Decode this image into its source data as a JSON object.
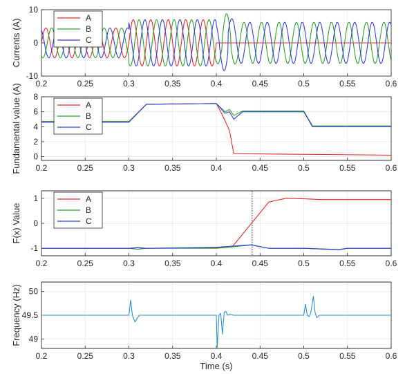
{
  "colors": {
    "A": "#e8262a",
    "B": "#2ca02c",
    "C": "#2f3fe0",
    "freq": "#2b8fc8",
    "cursor": "#333333"
  },
  "chart_data": [
    {
      "type": "line",
      "ylabel": "Currents (A)",
      "xlim": [
        0.2,
        0.6
      ],
      "ylim": [
        -10,
        10
      ],
      "xticks": [
        "0.2",
        "0.25",
        "0.3",
        "0.35",
        "0.4",
        "0.45",
        "0.5",
        "0.55",
        "0.6"
      ],
      "yticks": [
        "-10",
        "0",
        "10"
      ],
      "grid": true,
      "legend": {
        "placement": "top-left",
        "entries": [
          "A",
          "B",
          "C"
        ]
      },
      "series": [
        {
          "name": "A",
          "amplitude_segments": [
            [
              0.2,
              0.3,
              4.5
            ],
            [
              0.3,
              0.4,
              7
            ],
            [
              0.4,
              0.6,
              0
            ]
          ],
          "frequency_hz": 50,
          "phase_deg": 0
        },
        {
          "name": "B",
          "amplitude_segments": [
            [
              0.2,
              0.3,
              4.5
            ],
            [
              0.3,
              0.4,
              7
            ],
            [
              0.4,
              0.6,
              6.2
            ]
          ],
          "frequency_hz": 50,
          "phase_deg": -120,
          "peak_near_0.41": 9
        },
        {
          "name": "C",
          "amplitude_segments": [
            [
              0.2,
              0.3,
              4.5
            ],
            [
              0.3,
              0.4,
              7
            ],
            [
              0.4,
              0.6,
              6.2
            ]
          ],
          "frequency_hz": 50,
          "phase_deg": 120,
          "trough_near_0.415": -9.5
        }
      ]
    },
    {
      "type": "line",
      "ylabel": "Fundamental value (A)",
      "xlim": [
        0.2,
        0.6
      ],
      "ylim": [
        -0.5,
        8
      ],
      "xticks": [
        "0.2",
        "0.25",
        "0.3",
        "0.35",
        "0.4",
        "0.45",
        "0.5",
        "0.55",
        "0.6"
      ],
      "yticks": [
        "0",
        "2",
        "4",
        "6",
        "8"
      ],
      "grid": true,
      "legend": {
        "placement": "top-left",
        "entries": [
          "A",
          "B",
          "C"
        ]
      },
      "series": [
        {
          "name": "A",
          "x": [
            0.2,
            0.3,
            0.32,
            0.4,
            0.405,
            0.41,
            0.415,
            0.42,
            0.6
          ],
          "y": [
            4.7,
            4.7,
            7.0,
            7.1,
            6.0,
            4.8,
            3.5,
            0.4,
            0.2
          ]
        },
        {
          "name": "B",
          "x": [
            0.2,
            0.3,
            0.32,
            0.4,
            0.41,
            0.415,
            0.42,
            0.43,
            0.44,
            0.5,
            0.51,
            0.6
          ],
          "y": [
            4.7,
            4.7,
            7.0,
            7.1,
            6.0,
            6.3,
            5.5,
            6.1,
            6.1,
            6.1,
            4.1,
            4.1
          ]
        },
        {
          "name": "C",
          "x": [
            0.2,
            0.3,
            0.32,
            0.4,
            0.41,
            0.415,
            0.42,
            0.43,
            0.44,
            0.5,
            0.51,
            0.6
          ],
          "y": [
            4.6,
            4.6,
            7.0,
            7.1,
            5.8,
            6.0,
            5.0,
            6.0,
            6.0,
            6.0,
            4.0,
            4.0
          ]
        }
      ]
    },
    {
      "type": "line",
      "ylabel": "F(x) Value",
      "xlim": [
        0.2,
        0.6
      ],
      "ylim": [
        -1.3,
        1.3
      ],
      "xticks": [
        "0.2",
        "0.25",
        "0.3",
        "0.35",
        "0.4",
        "0.45",
        "0.5",
        "0.55",
        "0.6"
      ],
      "yticks": [
        "-1",
        "0",
        "1"
      ],
      "grid": true,
      "legend": {
        "placement": "top-left",
        "entries": [
          "A",
          "B",
          "C"
        ]
      },
      "cursor_x": 0.441,
      "series": [
        {
          "name": "A",
          "x": [
            0.2,
            0.3,
            0.31,
            0.32,
            0.4,
            0.418,
            0.46,
            0.48,
            0.5,
            0.52,
            0.6
          ],
          "y": [
            -1.0,
            -1.0,
            -0.97,
            -1.0,
            -0.98,
            -0.95,
            0.85,
            1.0,
            0.98,
            0.95,
            0.95
          ]
        },
        {
          "name": "B",
          "x": [
            0.2,
            0.3,
            0.31,
            0.32,
            0.4,
            0.44,
            0.46,
            0.5,
            0.54,
            0.55,
            0.6
          ],
          "y": [
            -1.0,
            -1.0,
            -1.04,
            -1.0,
            -1.0,
            -0.87,
            -1.0,
            -1.0,
            -1.05,
            -1.0,
            -1.0
          ]
        },
        {
          "name": "C",
          "x": [
            0.2,
            0.3,
            0.31,
            0.32,
            0.4,
            0.44,
            0.46,
            0.5,
            0.54,
            0.55,
            0.6
          ],
          "y": [
            -1.0,
            -1.0,
            -0.98,
            -1.0,
            -0.96,
            -0.86,
            -1.0,
            -1.0,
            -1.06,
            -1.0,
            -1.0
          ]
        }
      ]
    },
    {
      "type": "line",
      "ylabel": "Frequency (Hz)",
      "xlabel": "Time (s)",
      "xlim": [
        0.2,
        0.6
      ],
      "ylim": [
        48.8,
        50.2
      ],
      "xticks": [
        "0.2",
        "0.25",
        "0.3",
        "0.35",
        "0.4",
        "0.45",
        "0.5",
        "0.55",
        "0.6"
      ],
      "yticks": [
        "49",
        "49.5",
        "50"
      ],
      "grid": true,
      "series": [
        {
          "x": [
            0.2,
            0.3,
            0.302,
            0.304,
            0.307,
            0.309,
            0.312,
            0.315,
            0.4,
            0.401,
            0.403,
            0.405,
            0.407,
            0.409,
            0.411,
            0.413,
            0.416,
            0.42,
            0.5,
            0.502,
            0.504,
            0.506,
            0.508,
            0.511,
            0.513,
            0.515,
            0.518,
            0.6
          ],
          "y": [
            49.5,
            49.5,
            49.82,
            49.5,
            49.36,
            49.42,
            49.5,
            49.5,
            49.5,
            48.82,
            49.5,
            49.54,
            49.1,
            49.56,
            49.58,
            49.5,
            49.52,
            49.5,
            49.5,
            49.73,
            49.5,
            49.47,
            49.55,
            49.9,
            49.55,
            49.45,
            49.5,
            49.5
          ]
        }
      ]
    }
  ]
}
